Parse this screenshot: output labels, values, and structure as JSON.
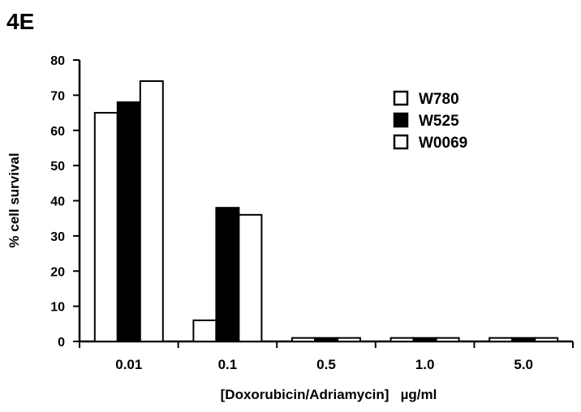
{
  "chart_data": {
    "type": "bar",
    "title": "4E",
    "xlabel": "[Doxorubicin/Adriamycin]   µg/ml",
    "ylabel": "% cell survival",
    "ylim": [
      0,
      80
    ],
    "yticks": [
      0,
      10,
      20,
      30,
      40,
      50,
      60,
      70,
      80
    ],
    "categories": [
      "0.01",
      "0.1",
      "0.5",
      "1.0",
      "5.0"
    ],
    "series": [
      {
        "name": "W780",
        "color": "#ffffff",
        "values": [
          65,
          6,
          1,
          1,
          1
        ]
      },
      {
        "name": "W525",
        "color": "#000000",
        "values": [
          68,
          38,
          1,
          1,
          1
        ]
      },
      {
        "name": "W0069",
        "color": "#ffffff",
        "values": [
          74,
          36,
          1,
          1,
          1
        ]
      }
    ],
    "legend": {
      "position": "top-right"
    },
    "grid": false
  }
}
